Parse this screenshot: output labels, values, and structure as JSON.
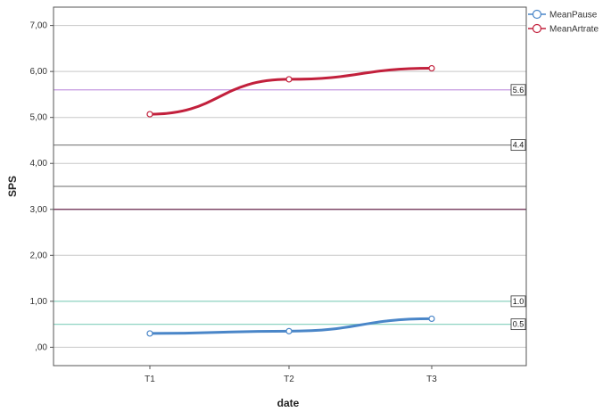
{
  "chart_data": {
    "type": "line",
    "xlabel": "date",
    "ylabel": "SPS",
    "categories": [
      "T1",
      "T2",
      "T3"
    ],
    "ylim": [
      -0.4,
      7.4
    ],
    "yticks": [
      "7,00",
      "6,00",
      "5,00",
      "4,00",
      "3,00",
      "2,00",
      "1,00",
      ",00"
    ],
    "ytick_values": [
      7,
      6,
      5,
      4,
      3,
      2,
      1,
      0
    ],
    "series": [
      {
        "name": "MeanPause",
        "values": [
          0.3,
          0.35,
          0.62
        ],
        "color": "#4a86c8"
      },
      {
        "name": "MeanArtrate",
        "values": [
          5.07,
          5.83,
          6.07
        ],
        "color": "#c2203c"
      }
    ],
    "reference_lines": [
      {
        "value": 5.6,
        "label": "5.6",
        "color": "#c49ae0"
      },
      {
        "value": 4.4,
        "label": "4.4",
        "color": "#888888"
      },
      {
        "value": 3.5,
        "label": "",
        "color": "#888888"
      },
      {
        "value": 3.0,
        "label": "",
        "color": "#6b2a50"
      },
      {
        "value": 1.0,
        "label": "1.0",
        "color": "#8fd4c2"
      },
      {
        "value": 0.5,
        "label": "0.5",
        "color": "#8fd4c2"
      }
    ],
    "grid": true,
    "legend": "top-right"
  }
}
